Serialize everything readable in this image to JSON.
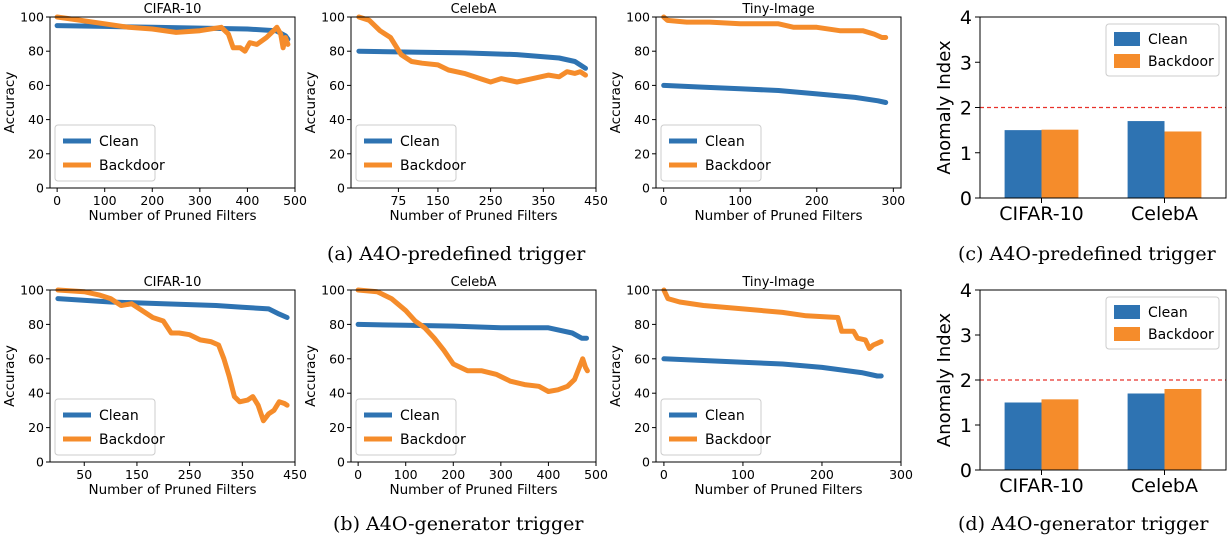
{
  "colors": {
    "clean": "#2e73b2",
    "backdoor": "#f58c2b",
    "threshold": "#e8312a"
  },
  "captions": {
    "a": "(a) A4O-predefined trigger",
    "b": "(b) A4O-generator trigger",
    "c": "(c) A4O-predefined trigger",
    "d": "(d) A4O-generator trigger"
  },
  "chart_data": [
    {
      "id": "a1",
      "type": "line",
      "title": "CIFAR-10",
      "xlabel": "Number of Pruned Filters",
      "ylabel": "Accuracy",
      "xlim": [
        -15,
        500
      ],
      "ylim": [
        0,
        100
      ],
      "xticks": [
        0,
        100,
        200,
        300,
        400,
        500
      ],
      "yticks": [
        0,
        20,
        40,
        60,
        80,
        100
      ],
      "legend": "lower-left",
      "series": [
        {
          "name": "Clean",
          "points": [
            [
              0,
              95
            ],
            [
              100,
              94.5
            ],
            [
              200,
              94
            ],
            [
              300,
              93.5
            ],
            [
              400,
              93
            ],
            [
              460,
              92
            ],
            [
              480,
              89
            ],
            [
              485,
              87
            ]
          ]
        },
        {
          "name": "Backdoor",
          "points": [
            [
              0,
              100
            ],
            [
              50,
              98
            ],
            [
              100,
              96
            ],
            [
              150,
              94
            ],
            [
              200,
              93
            ],
            [
              250,
              91
            ],
            [
              300,
              92
            ],
            [
              345,
              94
            ],
            [
              360,
              90
            ],
            [
              370,
              82
            ],
            [
              385,
              82
            ],
            [
              395,
              80
            ],
            [
              405,
              85
            ],
            [
              420,
              84
            ],
            [
              440,
              88
            ],
            [
              455,
              92
            ],
            [
              462,
              94
            ],
            [
              466,
              92
            ],
            [
              470,
              90
            ],
            [
              475,
              82
            ],
            [
              480,
              88
            ],
            [
              485,
              84
            ]
          ]
        }
      ]
    },
    {
      "id": "a2",
      "type": "line",
      "title": "CelebA",
      "xlabel": "Number of Pruned Filters",
      "ylabel": "Accuracy",
      "xlim": [
        -15,
        450
      ],
      "ylim": [
        0,
        100
      ],
      "xticks": [
        75,
        150,
        250,
        350,
        450
      ],
      "yticks": [
        0,
        20,
        40,
        60,
        80,
        100
      ],
      "legend": "lower-left",
      "series": [
        {
          "name": "Clean",
          "points": [
            [
              0,
              80
            ],
            [
              100,
              79.5
            ],
            [
              200,
              79
            ],
            [
              300,
              78
            ],
            [
              380,
              76
            ],
            [
              410,
              74
            ],
            [
              430,
              70
            ]
          ]
        },
        {
          "name": "Backdoor",
          "points": [
            [
              0,
              100
            ],
            [
              20,
              98
            ],
            [
              40,
              92
            ],
            [
              60,
              88
            ],
            [
              80,
              78
            ],
            [
              100,
              74
            ],
            [
              120,
              73
            ],
            [
              150,
              72
            ],
            [
              170,
              69
            ],
            [
              200,
              67
            ],
            [
              230,
              64
            ],
            [
              250,
              62
            ],
            [
              270,
              64
            ],
            [
              300,
              62
            ],
            [
              330,
              64
            ],
            [
              360,
              66
            ],
            [
              380,
              65
            ],
            [
              395,
              68
            ],
            [
              410,
              67
            ],
            [
              420,
              68
            ],
            [
              430,
              66
            ]
          ]
        }
      ]
    },
    {
      "id": "a3",
      "type": "line",
      "title": "Tiny-Image",
      "xlabel": "Number of Pruned Filters",
      "ylabel": "Accuracy",
      "xlim": [
        -10,
        310
      ],
      "ylim": [
        0,
        100
      ],
      "xticks": [
        0,
        100,
        200,
        300
      ],
      "yticks": [
        0,
        20,
        40,
        60,
        80,
        100
      ],
      "legend": "lower-left",
      "series": [
        {
          "name": "Clean",
          "points": [
            [
              0,
              60
            ],
            [
              50,
              59
            ],
            [
              100,
              58
            ],
            [
              150,
              57
            ],
            [
              200,
              55
            ],
            [
              250,
              53
            ],
            [
              280,
              51
            ],
            [
              290,
              50
            ]
          ]
        },
        {
          "name": "Backdoor",
          "points": [
            [
              0,
              100
            ],
            [
              5,
              98
            ],
            [
              30,
              97
            ],
            [
              60,
              97
            ],
            [
              100,
              96
            ],
            [
              150,
              96
            ],
            [
              170,
              94
            ],
            [
              200,
              94
            ],
            [
              230,
              92
            ],
            [
              260,
              92
            ],
            [
              275,
              90
            ],
            [
              285,
              88
            ],
            [
              290,
              88
            ]
          ]
        }
      ]
    },
    {
      "id": "b1",
      "type": "line",
      "title": "CIFAR-10",
      "xlabel": "Number of Pruned Filters",
      "ylabel": "Accuracy",
      "xlim": [
        -15,
        450
      ],
      "ylim": [
        0,
        100
      ],
      "xticks": [
        50,
        150,
        250,
        350,
        450
      ],
      "yticks": [
        0,
        20,
        40,
        60,
        80,
        100
      ],
      "legend": "lower-left",
      "series": [
        {
          "name": "Clean",
          "points": [
            [
              0,
              95
            ],
            [
              100,
              93
            ],
            [
              200,
              92
            ],
            [
              300,
              91
            ],
            [
              350,
              90
            ],
            [
              400,
              89
            ],
            [
              420,
              86
            ],
            [
              435,
              84
            ]
          ]
        },
        {
          "name": "Backdoor",
          "points": [
            [
              0,
              100
            ],
            [
              50,
              99
            ],
            [
              80,
              97
            ],
            [
              100,
              95
            ],
            [
              120,
              91
            ],
            [
              140,
              92
            ],
            [
              160,
              88
            ],
            [
              180,
              84
            ],
            [
              200,
              82
            ],
            [
              215,
              75
            ],
            [
              230,
              75
            ],
            [
              250,
              74
            ],
            [
              270,
              71
            ],
            [
              290,
              70
            ],
            [
              305,
              68
            ],
            [
              315,
              60
            ],
            [
              325,
              50
            ],
            [
              335,
              38
            ],
            [
              345,
              35
            ],
            [
              360,
              36
            ],
            [
              370,
              38
            ],
            [
              380,
              33
            ],
            [
              390,
              24
            ],
            [
              400,
              28
            ],
            [
              410,
              30
            ],
            [
              420,
              35
            ],
            [
              430,
              34
            ],
            [
              435,
              33
            ]
          ]
        }
      ]
    },
    {
      "id": "b2",
      "type": "line",
      "title": "CelebA",
      "xlabel": "Number of Pruned Filters",
      "ylabel": "Accuracy",
      "xlim": [
        -15,
        500
      ],
      "ylim": [
        0,
        100
      ],
      "xticks": [
        0,
        100,
        200,
        300,
        400,
        500
      ],
      "yticks": [
        0,
        20,
        40,
        60,
        80,
        100
      ],
      "legend": "lower-left",
      "series": [
        {
          "name": "Clean",
          "points": [
            [
              0,
              80
            ],
            [
              100,
              79.5
            ],
            [
              200,
              79
            ],
            [
              300,
              78
            ],
            [
              400,
              78
            ],
            [
              450,
              75
            ],
            [
              470,
              72
            ],
            [
              480,
              72
            ]
          ]
        },
        {
          "name": "Backdoor",
          "points": [
            [
              0,
              100
            ],
            [
              40,
              99
            ],
            [
              70,
              95
            ],
            [
              100,
              88
            ],
            [
              120,
              82
            ],
            [
              140,
              78
            ],
            [
              160,
              72
            ],
            [
              180,
              65
            ],
            [
              200,
              57
            ],
            [
              230,
              53
            ],
            [
              260,
              53
            ],
            [
              290,
              51
            ],
            [
              320,
              47
            ],
            [
              350,
              45
            ],
            [
              380,
              44
            ],
            [
              400,
              41
            ],
            [
              420,
              42
            ],
            [
              440,
              44
            ],
            [
              455,
              48
            ],
            [
              465,
              55
            ],
            [
              472,
              60
            ],
            [
              478,
              55
            ],
            [
              482,
              53
            ]
          ]
        }
      ]
    },
    {
      "id": "b3",
      "type": "line",
      "title": "Tiny-Image",
      "xlabel": "Number of Pruned Filters",
      "ylabel": "Accuracy",
      "xlim": [
        -10,
        300
      ],
      "ylim": [
        0,
        100
      ],
      "xticks": [
        0,
        100,
        200,
        300
      ],
      "yticks": [
        0,
        20,
        40,
        60,
        80,
        100
      ],
      "legend": "lower-left",
      "series": [
        {
          "name": "Clean",
          "points": [
            [
              0,
              60
            ],
            [
              50,
              59
            ],
            [
              100,
              58
            ],
            [
              150,
              57
            ],
            [
              200,
              55
            ],
            [
              250,
              52
            ],
            [
              270,
              50
            ],
            [
              275,
              50
            ]
          ]
        },
        {
          "name": "Backdoor",
          "points": [
            [
              0,
              100
            ],
            [
              5,
              95
            ],
            [
              20,
              93
            ],
            [
              50,
              91
            ],
            [
              100,
              89
            ],
            [
              150,
              87
            ],
            [
              180,
              85
            ],
            [
              220,
              84
            ],
            [
              225,
              76
            ],
            [
              240,
              76
            ],
            [
              245,
              72
            ],
            [
              255,
              71
            ],
            [
              260,
              66
            ],
            [
              265,
              68
            ],
            [
              270,
              69
            ],
            [
              275,
              70
            ]
          ]
        }
      ]
    },
    {
      "id": "c",
      "type": "bar",
      "title": "",
      "xlabel": "",
      "ylabel": "Anomaly Index",
      "ylim": [
        0,
        4
      ],
      "yticks": [
        0,
        1,
        2,
        3,
        4
      ],
      "categories": [
        "CIFAR-10",
        "CelebA"
      ],
      "threshold": 2,
      "legend": "top-right",
      "series": [
        {
          "name": "Clean",
          "values": [
            1.5,
            1.7
          ]
        },
        {
          "name": "Backdoor",
          "values": [
            1.51,
            1.47
          ]
        }
      ]
    },
    {
      "id": "d",
      "type": "bar",
      "title": "",
      "xlabel": "",
      "ylabel": "Anomaly Index",
      "ylim": [
        0,
        4
      ],
      "yticks": [
        0,
        1,
        2,
        3,
        4
      ],
      "categories": [
        "CIFAR-10",
        "CelebA"
      ],
      "threshold": 2,
      "legend": "top-right",
      "series": [
        {
          "name": "Clean",
          "values": [
            1.5,
            1.7
          ]
        },
        {
          "name": "Backdoor",
          "values": [
            1.57,
            1.8
          ]
        }
      ]
    }
  ]
}
